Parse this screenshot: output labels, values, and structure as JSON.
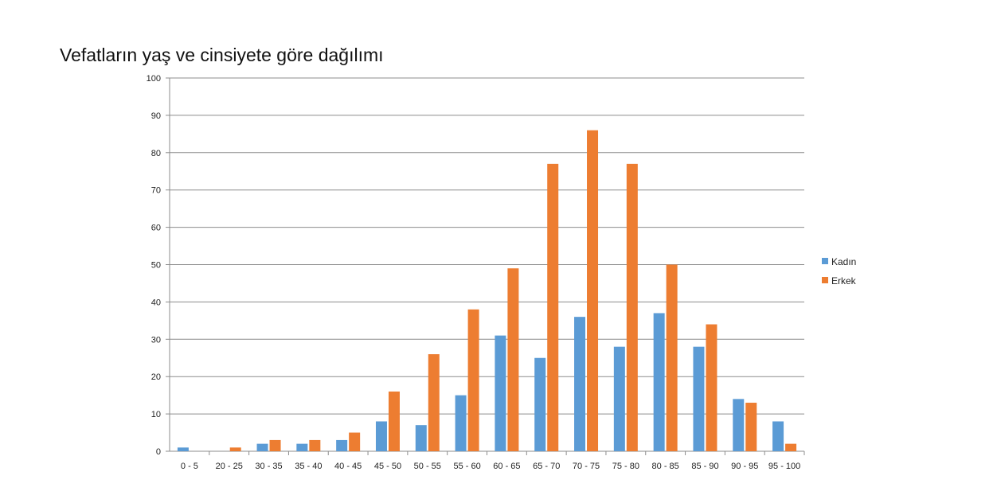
{
  "chart_data": {
    "type": "bar",
    "title": "Vefatların yaş ve cinsiyete göre dağılımı",
    "xlabel": "",
    "ylabel": "",
    "ylim": [
      0,
      100
    ],
    "yticks": [
      0,
      10,
      20,
      30,
      40,
      50,
      60,
      70,
      80,
      90,
      100
    ],
    "grid": true,
    "legend_position": "right",
    "categories": [
      "0 - 5",
      "20 - 25",
      "30 - 35",
      "35 - 40",
      "40 - 45",
      "45 - 50",
      "50 - 55",
      "55 - 60",
      "60 - 65",
      "65 - 70",
      "70 - 75",
      "75 - 80",
      "80 - 85",
      "85 - 90",
      "90 - 95",
      "95 - 100"
    ],
    "series": [
      {
        "name": "Kadın",
        "color": "#5B9BD5",
        "values": [
          1,
          0,
          2,
          2,
          3,
          8,
          7,
          15,
          31,
          25,
          36,
          28,
          37,
          28,
          14,
          8
        ]
      },
      {
        "name": "Erkek",
        "color": "#ED7D31",
        "values": [
          0,
          1,
          3,
          3,
          5,
          16,
          26,
          38,
          49,
          77,
          86,
          77,
          50,
          34,
          13,
          2
        ]
      }
    ]
  }
}
